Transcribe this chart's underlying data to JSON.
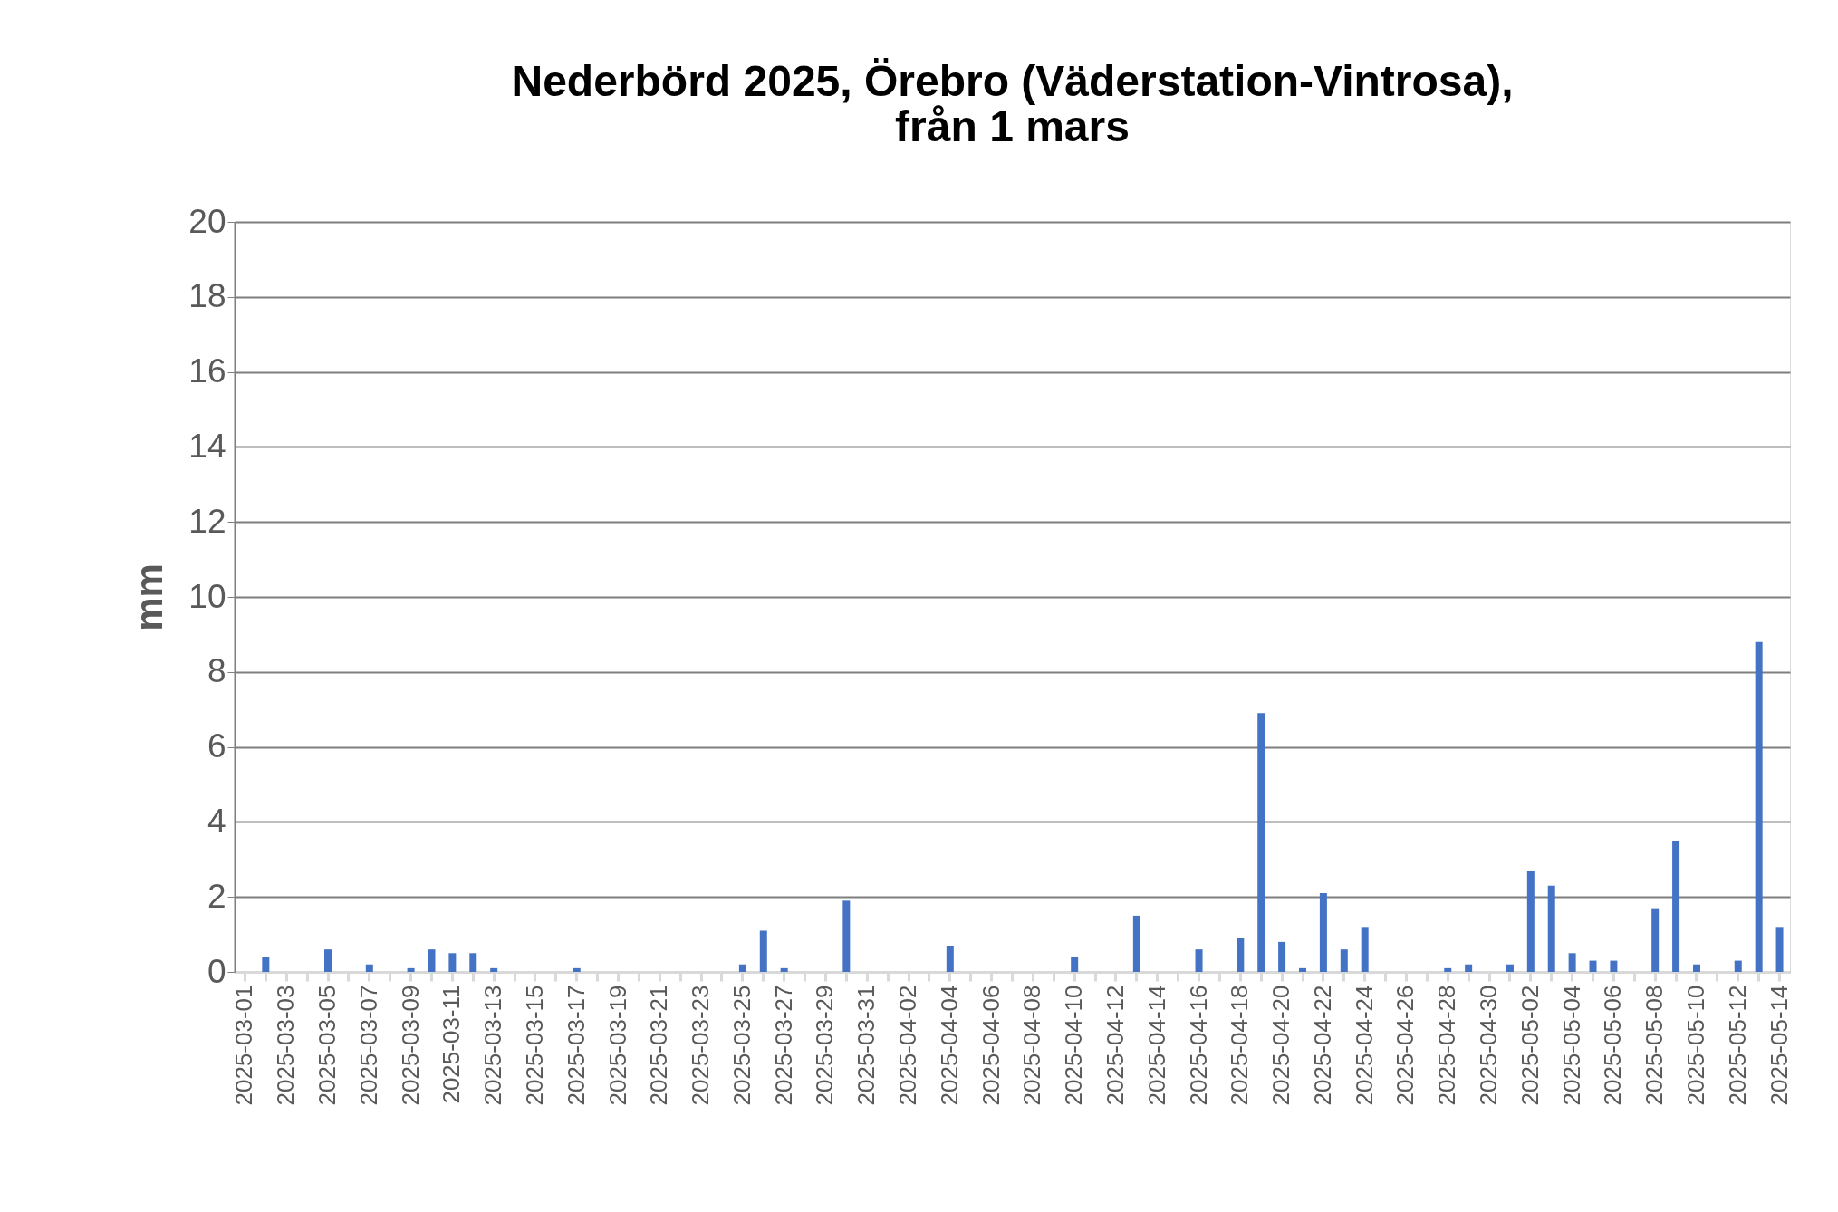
{
  "chart_data": {
    "type": "bar",
    "title": "Nederbörd 2025, Örebro (Väderstation-Vintrosa),\nfrån 1 mars",
    "ylabel": "mm",
    "categories": [
      "2025-03-01",
      null,
      "2025-03-03",
      null,
      "2025-03-05",
      null,
      "2025-03-07",
      null,
      "2025-03-09",
      null,
      "2025-03-11",
      null,
      "2025-03-13",
      null,
      "2025-03-15",
      null,
      "2025-03-17",
      null,
      "2025-03-19",
      null,
      "2025-03-21",
      null,
      "2025-03-23",
      null,
      "2025-03-25",
      null,
      "2025-03-27",
      null,
      "2025-03-29",
      null,
      "2025-03-31",
      null,
      "2025-04-02",
      null,
      "2025-04-04",
      null,
      "2025-04-06",
      null,
      "2025-04-08",
      null,
      "2025-04-10",
      null,
      "2025-04-12",
      null,
      "2025-04-14",
      null,
      "2025-04-16",
      null,
      "2025-04-18",
      null,
      "2025-04-20",
      null,
      "2025-04-22",
      null,
      "2025-04-24",
      null,
      "2025-04-26",
      null,
      "2025-04-28",
      null,
      "2025-04-30",
      null,
      "2025-05-02",
      null,
      "2025-05-04",
      null,
      "2025-05-06",
      null,
      "2025-05-08",
      null,
      "2025-05-10",
      null,
      "2025-05-12",
      null,
      "2025-05-14"
    ],
    "values": [
      0,
      0.4,
      0,
      0,
      0.6,
      0,
      0.2,
      0,
      0.1,
      0.6,
      0.5,
      0.5,
      0.1,
      0,
      0,
      0,
      0.1,
      0,
      0,
      0,
      0,
      0,
      0,
      0,
      0.2,
      1.1,
      0.1,
      0,
      0,
      1.9,
      0,
      0,
      0,
      0,
      0.7,
      0,
      0,
      0,
      0,
      0,
      0.4,
      0,
      0,
      1.5,
      0,
      0,
      0.6,
      0,
      0.9,
      6.9,
      0.8,
      0.1,
      2.1,
      0.6,
      1.2,
      0,
      0,
      0,
      0.1,
      0.2,
      0,
      0.2,
      2.7,
      2.3,
      0.5,
      0.3,
      0.3,
      0,
      1.7,
      3.5,
      0.2,
      0,
      0.3,
      8.8,
      1.2
    ],
    "color": "#4472c4",
    "ylim": [
      0,
      20
    ],
    "yticks": [
      0,
      2,
      4,
      6,
      8,
      10,
      12,
      14,
      16,
      18,
      20
    ],
    "grid": "y"
  }
}
